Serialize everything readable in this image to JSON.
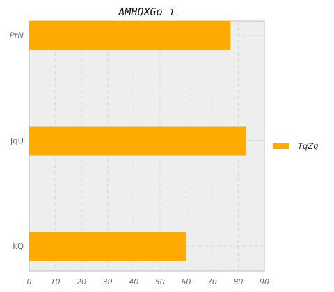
{
  "chart_data": {
    "type": "bar",
    "orientation": "horizontal",
    "title": "AMHQXGo i",
    "categories": [
      "PrN",
      "JqU",
      "kQ"
    ],
    "series": [
      {
        "name": "TqZq",
        "values": [
          77,
          83,
          60
        ],
        "color": "#ffaa00"
      }
    ],
    "xlim": [
      0,
      90
    ],
    "xticks": [
      0,
      10,
      20,
      30,
      40,
      50,
      60,
      70,
      80,
      90
    ],
    "xlabel": "",
    "ylabel": "",
    "grid": true,
    "legend": "right",
    "colors": {
      "plot_background": "#eeeeee",
      "grid": "#d9d9d9",
      "tick_text": "#5f6f7a"
    }
  }
}
